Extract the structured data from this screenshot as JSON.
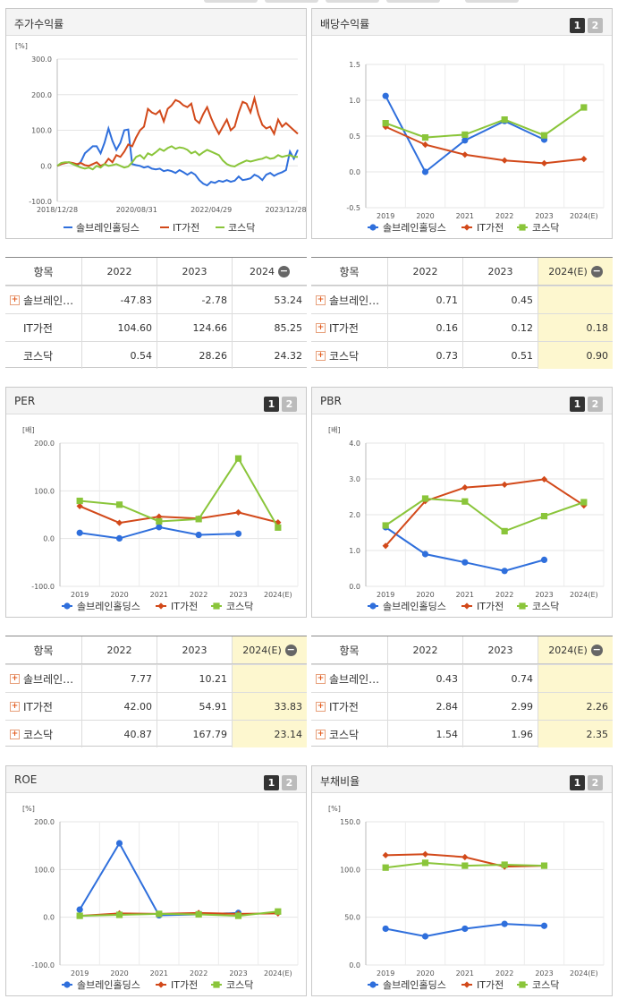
{
  "colors": {
    "company": "#2f6fdc",
    "sector": "#d2491a",
    "kosdaq": "#8ac53a"
  },
  "legend": {
    "company": "솔브레인홀딩스",
    "sector": "IT가전",
    "kosdaq": "코스닥"
  },
  "tabs": {
    "one": "1",
    "two": "2"
  },
  "panels": {
    "stock_return": {
      "title": "주가수익률",
      "unit": "[%]"
    },
    "dividend": {
      "title": "배당수익률"
    },
    "per": {
      "title": "PER",
      "unit": "[배]"
    },
    "pbr": {
      "title": "PBR",
      "unit": "[배]"
    },
    "roe": {
      "title": "ROE",
      "unit": "[%]"
    },
    "debt": {
      "title": "부채비율",
      "unit": "[%]"
    }
  },
  "tables": {
    "stock_return": {
      "header": [
        "항목",
        "2022",
        "2023",
        "2024"
      ],
      "rows": [
        {
          "label": "솔브레인…",
          "values": [
            "-47.83",
            "-2.78",
            "53.24"
          ]
        },
        {
          "label": "IT가전",
          "values": [
            "104.60",
            "124.66",
            "85.25"
          ]
        },
        {
          "label": "코스닥",
          "values": [
            "0.54",
            "28.26",
            "24.32"
          ]
        }
      ]
    },
    "dividend": {
      "header": [
        "항목",
        "2022",
        "2023",
        "2024(E)"
      ],
      "rows": [
        {
          "label": "솔브레인…",
          "values": [
            "0.71",
            "0.45",
            ""
          ]
        },
        {
          "label": "IT가전",
          "values": [
            "0.16",
            "0.12",
            "0.18"
          ]
        },
        {
          "label": "코스닥",
          "values": [
            "0.73",
            "0.51",
            "0.90"
          ]
        }
      ]
    },
    "per": {
      "header": [
        "항목",
        "2022",
        "2023",
        "2024(E)"
      ],
      "rows": [
        {
          "label": "솔브레인…",
          "values": [
            "7.77",
            "10.21",
            ""
          ]
        },
        {
          "label": "IT가전",
          "values": [
            "42.00",
            "54.91",
            "33.83"
          ]
        },
        {
          "label": "코스닥",
          "values": [
            "40.87",
            "167.79",
            "23.14"
          ]
        }
      ]
    },
    "pbr": {
      "header": [
        "항목",
        "2022",
        "2023",
        "2024(E)"
      ],
      "rows": [
        {
          "label": "솔브레인…",
          "values": [
            "0.43",
            "0.74",
            ""
          ]
        },
        {
          "label": "IT가전",
          "values": [
            "2.84",
            "2.99",
            "2.26"
          ]
        },
        {
          "label": "코스닥",
          "values": [
            "1.54",
            "1.96",
            "2.35"
          ]
        }
      ]
    }
  },
  "chart_data": [
    {
      "type": "line",
      "title": "주가수익률",
      "unit": "[%]",
      "x_ticks": [
        "2018/12/28",
        "2020/08/31",
        "2022/04/29",
        "2023/12/28"
      ],
      "y_ticks": [
        "300.0",
        "200.0",
        "100.0",
        "0.0",
        "-100.0"
      ],
      "ylim": [
        -100,
        300
      ],
      "series": [
        {
          "name": "솔브레인홀딩스",
          "values": [
            0,
            5,
            8,
            10,
            5,
            0,
            12,
            35,
            45,
            55,
            55,
            35,
            65,
            105,
            70,
            45,
            65,
            100,
            102,
            5,
            2,
            0,
            -5,
            -2,
            -8,
            -10,
            -8,
            -15,
            -12,
            -15,
            -20,
            -12,
            -18,
            -25,
            -18,
            -25,
            -40,
            -50,
            -55,
            -45,
            -48,
            -42,
            -45,
            -40,
            -45,
            -42,
            -30,
            -40,
            -38,
            -35,
            -25,
            -30,
            -40,
            -25,
            -20,
            -28,
            -22,
            -18,
            -12,
            40,
            20,
            45
          ]
        },
        {
          "name": "IT가전",
          "values": [
            0,
            5,
            8,
            10,
            8,
            5,
            8,
            2,
            0,
            5,
            10,
            0,
            5,
            20,
            10,
            30,
            25,
            40,
            60,
            55,
            80,
            100,
            110,
            160,
            150,
            145,
            155,
            125,
            160,
            170,
            185,
            180,
            170,
            165,
            175,
            130,
            120,
            145,
            165,
            135,
            110,
            90,
            110,
            130,
            100,
            110,
            150,
            180,
            175,
            150,
            190,
            145,
            115,
            105,
            110,
            90,
            130,
            110,
            120,
            110,
            100,
            90
          ]
        },
        {
          "name": "코스닥",
          "values": [
            0,
            8,
            10,
            10,
            5,
            0,
            -5,
            -8,
            -5,
            -10,
            0,
            -5,
            5,
            0,
            2,
            5,
            0,
            -5,
            -2,
            10,
            25,
            30,
            20,
            35,
            30,
            38,
            48,
            42,
            50,
            55,
            48,
            52,
            50,
            45,
            35,
            40,
            30,
            38,
            45,
            40,
            35,
            30,
            15,
            5,
            0,
            -2,
            5,
            10,
            15,
            12,
            15,
            18,
            20,
            25,
            20,
            22,
            30,
            25,
            28,
            30,
            25,
            25
          ]
        }
      ]
    },
    {
      "type": "line",
      "title": "배당수익률",
      "categories": [
        "2019",
        "2020",
        "2021",
        "2022",
        "2023",
        "2024(E)"
      ],
      "y_ticks": [
        "1.5",
        "1.0",
        "0.5",
        "0.0",
        "-0.5"
      ],
      "ylim": [
        -0.5,
        1.5
      ],
      "series": [
        {
          "name": "솔브레인홀딩스",
          "values": [
            1.06,
            0.0,
            0.44,
            0.71,
            0.45,
            null
          ]
        },
        {
          "name": "IT가전",
          "values": [
            0.63,
            0.38,
            0.24,
            0.16,
            0.12,
            0.18
          ]
        },
        {
          "name": "코스닥",
          "values": [
            0.68,
            0.48,
            0.52,
            0.73,
            0.51,
            0.9
          ]
        }
      ]
    },
    {
      "type": "line",
      "title": "PER",
      "unit": "[배]",
      "categories": [
        "2019",
        "2020",
        "2021",
        "2022",
        "2023",
        "2024(E)"
      ],
      "y_ticks": [
        "200.0",
        "100.0",
        "0.0",
        "-100.0"
      ],
      "ylim": [
        -100,
        200
      ],
      "series": [
        {
          "name": "솔브레인홀딩스",
          "values": [
            12.0,
            0.5,
            24.0,
            7.77,
            10.21,
            null
          ]
        },
        {
          "name": "IT가전",
          "values": [
            68.0,
            33.0,
            46.0,
            42.0,
            54.91,
            33.83
          ]
        },
        {
          "name": "코스닥",
          "values": [
            79.0,
            71.0,
            36.0,
            40.87,
            167.79,
            23.14
          ]
        }
      ]
    },
    {
      "type": "line",
      "title": "PBR",
      "unit": "[배]",
      "categories": [
        "2019",
        "2020",
        "2021",
        "2022",
        "2023",
        "2024(E)"
      ],
      "y_ticks": [
        "4.0",
        "3.0",
        "2.0",
        "1.0",
        "0.0"
      ],
      "ylim": [
        0,
        4
      ],
      "series": [
        {
          "name": "솔브레인홀딩스",
          "values": [
            1.65,
            0.9,
            0.67,
            0.43,
            0.74,
            null
          ]
        },
        {
          "name": "IT가전",
          "values": [
            1.13,
            2.38,
            2.76,
            2.84,
            2.99,
            2.26
          ]
        },
        {
          "name": "코스닥",
          "values": [
            1.7,
            2.45,
            2.37,
            1.54,
            1.96,
            2.35
          ]
        }
      ]
    },
    {
      "type": "line",
      "title": "ROE",
      "unit": "[%]",
      "categories": [
        "2019",
        "2020",
        "2021",
        "2022",
        "2023",
        "2024(E)"
      ],
      "y_ticks": [
        "200.0",
        "100.0",
        "0.0",
        "-100.0"
      ],
      "ylim": [
        -100,
        200
      ],
      "series": [
        {
          "name": "솔브레인홀딩스",
          "values": [
            16.0,
            155.0,
            4.0,
            6.0,
            9.0,
            null
          ]
        },
        {
          "name": "IT가전",
          "values": [
            3.0,
            8.0,
            7.0,
            9.0,
            7.0,
            8.0
          ]
        },
        {
          "name": "코스닥",
          "values": [
            3.0,
            5.0,
            7.0,
            6.0,
            3.0,
            12.0
          ]
        }
      ]
    },
    {
      "type": "line",
      "title": "부채비율",
      "unit": "[%]",
      "categories": [
        "2019",
        "2020",
        "2021",
        "2022",
        "2023",
        "2024(E)"
      ],
      "y_ticks": [
        "150.0",
        "100.0",
        "50.0",
        "0.0"
      ],
      "ylim": [
        0,
        150
      ],
      "series": [
        {
          "name": "솔브레인홀딩스",
          "values": [
            38.0,
            30.0,
            38.0,
            43.0,
            41.0,
            null
          ]
        },
        {
          "name": "IT가전",
          "values": [
            115.0,
            116.0,
            113.0,
            103.0,
            104.0,
            null
          ]
        },
        {
          "name": "코스닥",
          "values": [
            102.0,
            107.0,
            104.0,
            105.0,
            104.0,
            null
          ]
        }
      ]
    }
  ]
}
